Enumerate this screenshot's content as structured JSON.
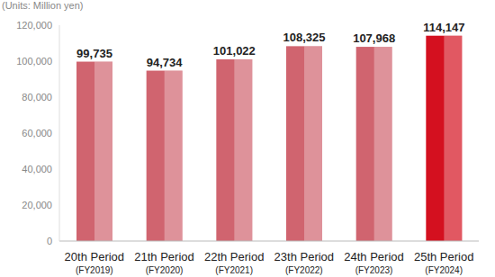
{
  "chart_data": {
    "type": "bar",
    "y_label": "(Units: Million yen)",
    "categories": [
      "20th Period\n(FY2019)",
      "21th Period\n(FY2020)",
      "22th Period\n(FY2021)",
      "23th Period\n(FY2022)",
      "24th Period\n(FY2023)",
      "25th Period\n(FY2024)"
    ],
    "values": [
      99735,
      94734,
      101022,
      108325,
      107968,
      114147
    ],
    "value_labels": [
      "99,735",
      "94,734",
      "101,022",
      "108,325",
      "107,968",
      "114,147"
    ],
    "colors": [
      "#d0646f",
      "#d0646f",
      "#d0646f",
      "#d0646f",
      "#d0646f",
      "#d4101f"
    ],
    "ylim": [
      0,
      120000
    ],
    "yticks": [
      0,
      {
        "value": 20000,
        "label": "20,000"
      },
      {
        "value": 40000,
        "label": "40,000"
      },
      {
        "value": 60000,
        "label": "60,000"
      },
      {
        "value": 80000,
        "label": "80,000"
      },
      {
        "value": 100000,
        "label": "100,000"
      },
      {
        "value": 120000,
        "label": "120,000"
      }
    ],
    "grid": false,
    "data_labels": true
  }
}
